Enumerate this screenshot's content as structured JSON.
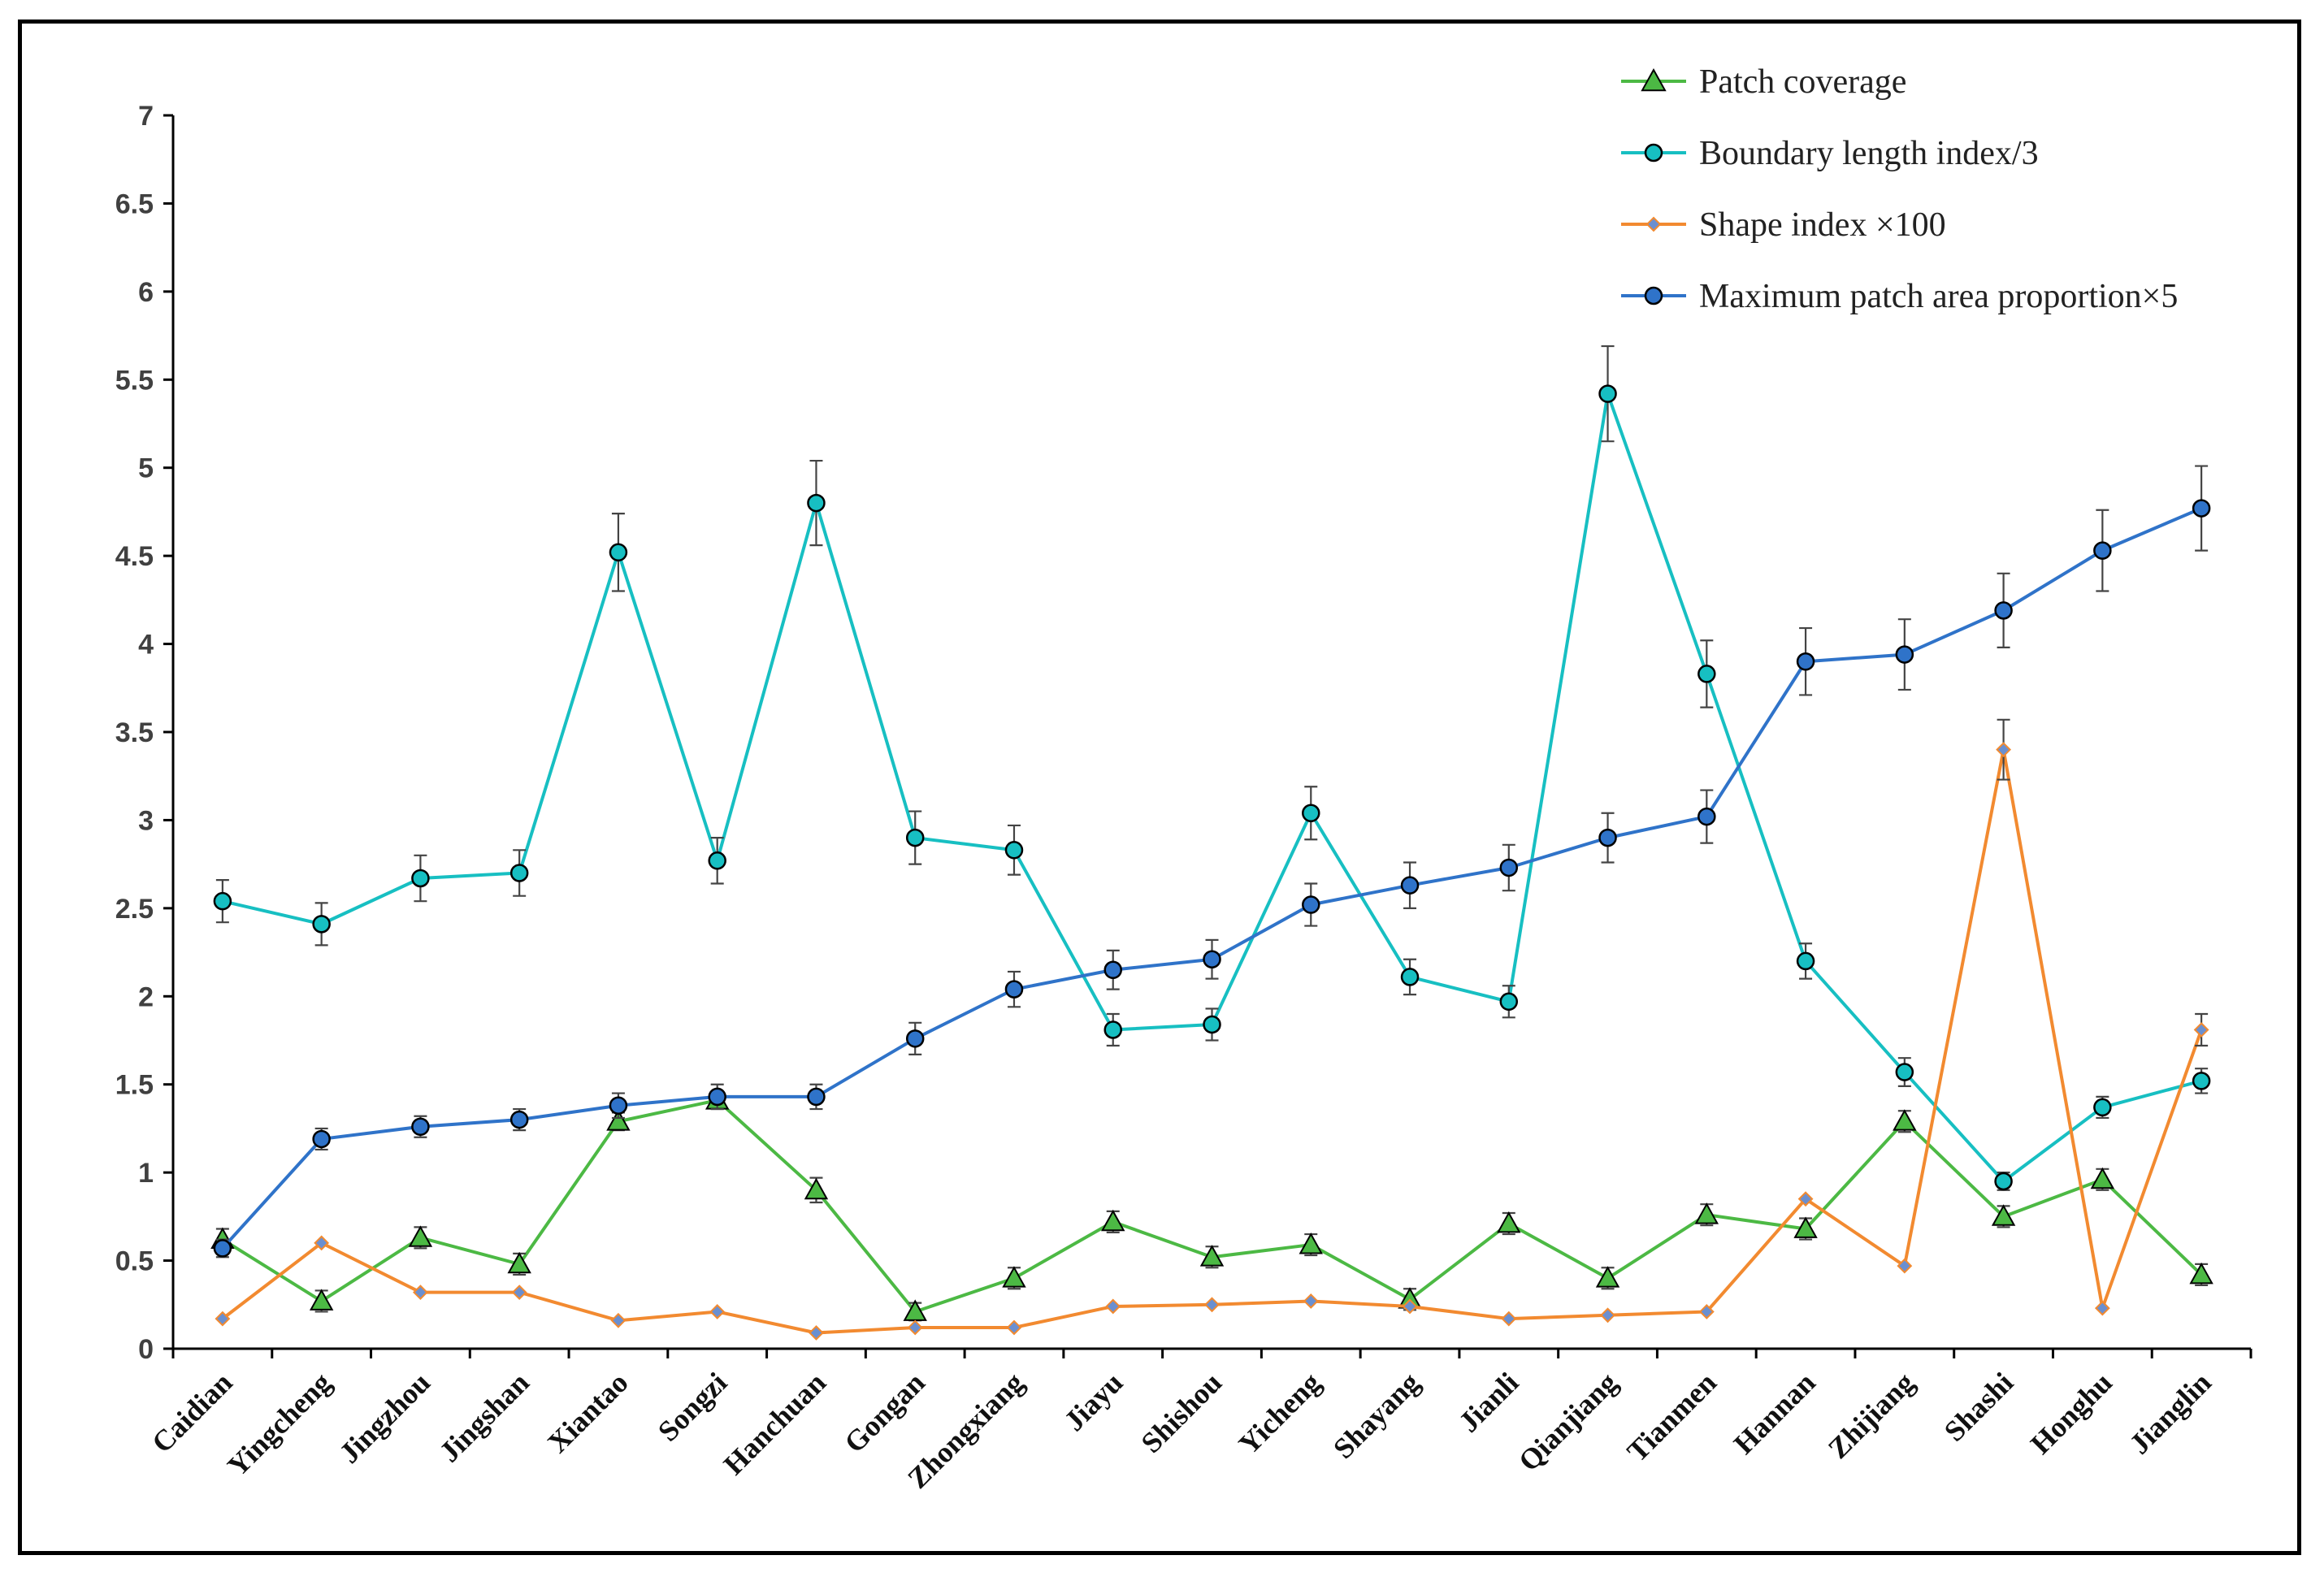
{
  "chart_data": {
    "type": "line",
    "title": "",
    "xlabel": "",
    "ylabel": "",
    "ylim": [
      0,
      7
    ],
    "yticks": [
      "0",
      "0.5",
      "1",
      "1.5",
      "2",
      "2.5",
      "3",
      "3.5",
      "4",
      "4.5",
      "5",
      "5.5",
      "6",
      "6.5",
      "7"
    ],
    "legend_position": "top-right",
    "categories": [
      "Caidian",
      "Yingcheng",
      "Jingzhou",
      "Jingshan",
      "Xiantao",
      "Songzi",
      "Hanchuan",
      "Gongan",
      "Zhongxiang",
      "Jiayu",
      "Shishou",
      "Yicheng",
      "Shayang",
      "Jianli",
      "Qianjiang",
      "Tianmen",
      "Hannan",
      "Zhijiang",
      "Shashi",
      "Honghu",
      "Jianglin"
    ],
    "series": [
      {
        "name": "Patch coverage",
        "color": "#4cb944",
        "marker": "triangle",
        "marker_fill": "#4cb944",
        "values": [
          0.62,
          0.27,
          0.63,
          0.48,
          1.29,
          1.41,
          0.9,
          0.21,
          0.4,
          0.72,
          0.52,
          0.59,
          0.28,
          0.71,
          0.4,
          0.76,
          0.68,
          1.29,
          0.75,
          0.96,
          0.42
        ],
        "errors": [
          0.06,
          0.06,
          0.06,
          0.06,
          0.05,
          0.05,
          0.07,
          0.05,
          0.06,
          0.06,
          0.06,
          0.06,
          0.06,
          0.06,
          0.06,
          0.06,
          0.06,
          0.06,
          0.06,
          0.06,
          0.06
        ]
      },
      {
        "name": "Boundary length index/3",
        "color": "#17bfc2",
        "marker": "circle",
        "marker_fill": "#17bfc2",
        "values": [
          2.54,
          2.41,
          2.67,
          2.7,
          4.52,
          2.77,
          4.8,
          2.9,
          2.83,
          1.81,
          1.84,
          3.04,
          2.11,
          1.97,
          5.42,
          3.83,
          2.2,
          1.57,
          0.95,
          1.37,
          1.52
        ],
        "errors": [
          0.12,
          0.12,
          0.13,
          0.13,
          0.22,
          0.13,
          0.24,
          0.15,
          0.14,
          0.09,
          0.09,
          0.15,
          0.1,
          0.09,
          0.27,
          0.19,
          0.1,
          0.08,
          0.05,
          0.06,
          0.07
        ]
      },
      {
        "name": "Shape index ×100",
        "color": "#f28a30",
        "marker": "diamond",
        "marker_fill": "#6a8fd0",
        "values": [
          0.17,
          0.6,
          0.32,
          0.32,
          0.16,
          0.21,
          0.09,
          0.12,
          0.12,
          0.24,
          0.25,
          0.27,
          0.24,
          0.17,
          0.19,
          0.21,
          0.85,
          0.47,
          3.4,
          0.23,
          1.81
        ],
        "errors": [
          0,
          0,
          0,
          0,
          0,
          0,
          0,
          0,
          0,
          0,
          0,
          0,
          0,
          0,
          0,
          0,
          0,
          0,
          0.17,
          0,
          0.09
        ]
      },
      {
        "name": "Maximum patch area proportion×5",
        "color": "#2f73c9",
        "marker": "circle",
        "marker_fill": "#2f73c9",
        "values": [
          0.57,
          1.19,
          1.26,
          1.3,
          1.38,
          1.43,
          1.43,
          1.76,
          2.04,
          2.15,
          2.21,
          2.52,
          2.63,
          2.73,
          2.9,
          3.02,
          3.9,
          3.94,
          4.19,
          4.53,
          4.77
        ],
        "errors": [
          0.05,
          0.06,
          0.06,
          0.06,
          0.07,
          0.07,
          0.07,
          0.09,
          0.1,
          0.11,
          0.11,
          0.12,
          0.13,
          0.13,
          0.14,
          0.15,
          0.19,
          0.2,
          0.21,
          0.23,
          0.24
        ]
      }
    ]
  }
}
